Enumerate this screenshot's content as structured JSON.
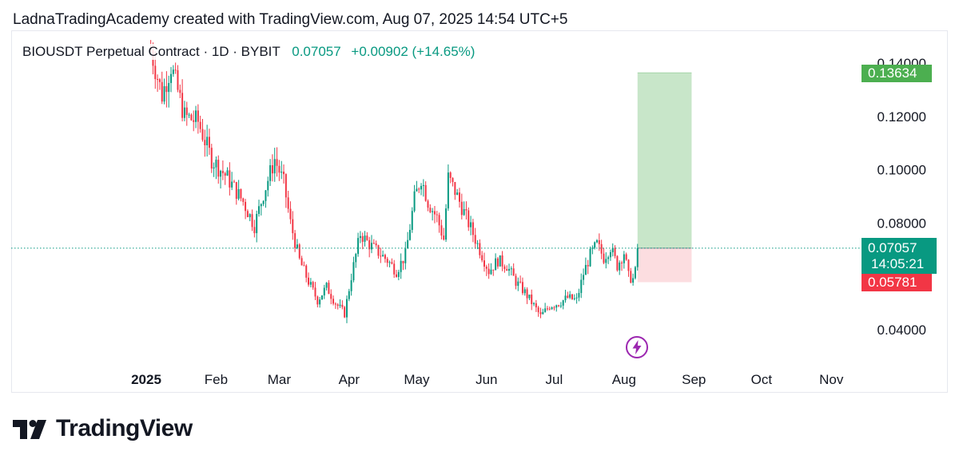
{
  "header": {
    "attribution": "LadnaTradingAcademy created with TradingView.com, Aug 07, 2025 14:54 UTC+5"
  },
  "legend": {
    "symbol": "BIOUSDT Perpetual Contract · 1D · BYBIT",
    "last": "0.07057",
    "change": "+0.00902 (+14.65%)"
  },
  "price_tags": {
    "target": "0.13634",
    "last": "0.07057",
    "countdown": "14:05:21",
    "stop": "0.05781"
  },
  "logo": {
    "text": "TradingView"
  },
  "colors": {
    "up": "#089981",
    "down": "#f23645",
    "target_tag": "#4caf50",
    "stop_tag": "#f23645",
    "profit_zone": "#c8e6c9",
    "loss_zone": "#fcdde0",
    "last_line": "#089981",
    "bolt": "#9c27b0"
  },
  "icons": {
    "flash": "lightning-bolt-icon",
    "logo": "tradingview-logo-icon"
  },
  "chart_data": {
    "type": "candlestick",
    "ylim": [
      0.025,
      0.145
    ],
    "y_ticks": [
      {
        "value": 0.14,
        "label": "0.14000"
      },
      {
        "value": 0.12,
        "label": "0.12000"
      },
      {
        "value": 0.1,
        "label": "0.10000"
      },
      {
        "value": 0.08,
        "label": "0.08000"
      },
      {
        "value": 0.04,
        "label": "0.04000"
      }
    ],
    "x_ticks": [
      {
        "date": "2025-01-01",
        "label": "2025",
        "bold": true
      },
      {
        "date": "2025-02-01",
        "label": "Feb"
      },
      {
        "date": "2025-03-01",
        "label": "Mar"
      },
      {
        "date": "2025-04-01",
        "label": "Apr"
      },
      {
        "date": "2025-05-01",
        "label": "May"
      },
      {
        "date": "2025-06-01",
        "label": "Jun"
      },
      {
        "date": "2025-07-01",
        "label": "Jul"
      },
      {
        "date": "2025-08-01",
        "label": "Aug"
      },
      {
        "date": "2025-09-01",
        "label": "Sep"
      },
      {
        "date": "2025-10-01",
        "label": "Oct"
      },
      {
        "date": "2025-11-01",
        "label": "Nov"
      }
    ],
    "price_path": [
      [
        "2025-01-03",
        0.145
      ],
      [
        "2025-01-08",
        0.128
      ],
      [
        "2025-01-12",
        0.139
      ],
      [
        "2025-01-18",
        0.12
      ],
      [
        "2025-01-24",
        0.118
      ],
      [
        "2025-01-30",
        0.104
      ],
      [
        "2025-02-06",
        0.097
      ],
      [
        "2025-02-13",
        0.088
      ],
      [
        "2025-02-18",
        0.079
      ],
      [
        "2025-02-22",
        0.091
      ],
      [
        "2025-02-27",
        0.104
      ],
      [
        "2025-03-03",
        0.095
      ],
      [
        "2025-03-06",
        0.08
      ],
      [
        "2025-03-10",
        0.066
      ],
      [
        "2025-03-14",
        0.058
      ],
      [
        "2025-03-18",
        0.051
      ],
      [
        "2025-03-22",
        0.056
      ],
      [
        "2025-03-26",
        0.05
      ],
      [
        "2025-03-30",
        0.046
      ],
      [
        "2025-04-02",
        0.06
      ],
      [
        "2025-04-06",
        0.076
      ],
      [
        "2025-04-10",
        0.072
      ],
      [
        "2025-04-14",
        0.069
      ],
      [
        "2025-04-18",
        0.066
      ],
      [
        "2025-04-22",
        0.062
      ],
      [
        "2025-04-26",
        0.068
      ],
      [
        "2025-04-30",
        0.089
      ],
      [
        "2025-05-03",
        0.097
      ],
      [
        "2025-05-06",
        0.088
      ],
      [
        "2025-05-10",
        0.082
      ],
      [
        "2025-05-13",
        0.074
      ],
      [
        "2025-05-15",
        0.097
      ],
      [
        "2025-05-18",
        0.092
      ],
      [
        "2025-05-21",
        0.086
      ],
      [
        "2025-05-25",
        0.078
      ],
      [
        "2025-05-29",
        0.07
      ],
      [
        "2025-06-02",
        0.062
      ],
      [
        "2025-06-06",
        0.066
      ],
      [
        "2025-06-10",
        0.064
      ],
      [
        "2025-06-14",
        0.058
      ],
      [
        "2025-06-18",
        0.054
      ],
      [
        "2025-06-22",
        0.049
      ],
      [
        "2025-06-25",
        0.045
      ],
      [
        "2025-06-29",
        0.049
      ],
      [
        "2025-07-03",
        0.05
      ],
      [
        "2025-07-07",
        0.052
      ],
      [
        "2025-07-11",
        0.051
      ],
      [
        "2025-07-14",
        0.061
      ],
      [
        "2025-07-17",
        0.068
      ],
      [
        "2025-07-20",
        0.072
      ],
      [
        "2025-07-23",
        0.067
      ],
      [
        "2025-07-26",
        0.071
      ],
      [
        "2025-07-29",
        0.064
      ],
      [
        "2025-08-01",
        0.069
      ],
      [
        "2025-08-03",
        0.06
      ],
      [
        "2025-08-05",
        0.059
      ],
      [
        "2025-08-06",
        0.0616
      ],
      [
        "2025-08-07",
        0.07057
      ]
    ],
    "last_price": 0.07057,
    "position": {
      "entry": 0.07057,
      "target": 0.13634,
      "stop": 0.05781,
      "start_date": "2025-08-07",
      "end_date": "2025-08-31"
    }
  }
}
